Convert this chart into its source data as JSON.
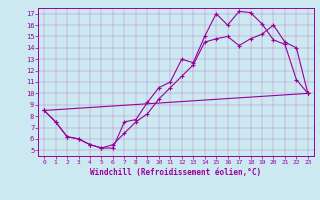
{
  "xlabel": "Windchill (Refroidissement éolien,°C)",
  "bg_color": "#cce8f0",
  "line_color": "#990099",
  "xlim": [
    -0.5,
    23.5
  ],
  "ylim": [
    4.5,
    17.5
  ],
  "xticks": [
    0,
    1,
    2,
    3,
    4,
    5,
    6,
    7,
    8,
    9,
    10,
    11,
    12,
    13,
    14,
    15,
    16,
    17,
    18,
    19,
    20,
    21,
    22,
    23
  ],
  "yticks": [
    5,
    6,
    7,
    8,
    9,
    10,
    11,
    12,
    13,
    14,
    15,
    16,
    17
  ],
  "series1_x": [
    0,
    1,
    2,
    3,
    4,
    5,
    6,
    7,
    8,
    9,
    10,
    11,
    12,
    13,
    14,
    15,
    16,
    17,
    18,
    19,
    20,
    21,
    22,
    23
  ],
  "series1_y": [
    8.5,
    7.5,
    6.2,
    6.0,
    5.5,
    5.2,
    5.2,
    7.5,
    7.7,
    9.2,
    10.5,
    11.0,
    13.0,
    12.7,
    15.0,
    17.0,
    16.0,
    17.2,
    17.1,
    16.1,
    14.7,
    14.3,
    11.2,
    10.0
  ],
  "series2_x": [
    0,
    1,
    2,
    3,
    4,
    5,
    6,
    7,
    8,
    9,
    10,
    11,
    12,
    13,
    14,
    15,
    16,
    17,
    18,
    19,
    20,
    21,
    22,
    23
  ],
  "series2_y": [
    8.5,
    7.5,
    6.2,
    6.0,
    5.5,
    5.2,
    5.5,
    6.5,
    7.5,
    8.2,
    9.5,
    10.5,
    11.5,
    12.5,
    14.5,
    14.8,
    15.0,
    14.2,
    14.8,
    15.2,
    16.0,
    14.5,
    14.0,
    10.0
  ],
  "series3_x": [
    0,
    23
  ],
  "series3_y": [
    8.5,
    10.0
  ]
}
